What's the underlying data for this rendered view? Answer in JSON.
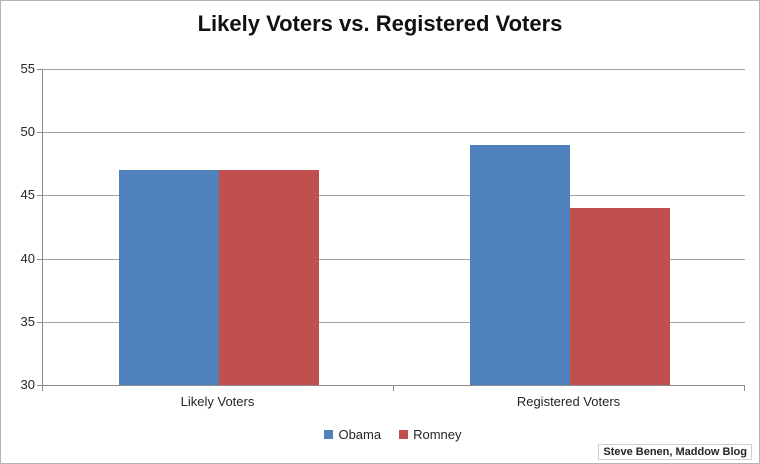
{
  "chart_data": {
    "type": "bar",
    "title": "Likely Voters vs. Registered Voters",
    "categories": [
      "Likely Voters",
      "Registered Voters"
    ],
    "series": [
      {
        "name": "Obama",
        "color": "#4F81BD",
        "values": [
          47,
          49
        ]
      },
      {
        "name": "Romney",
        "color": "#C0504D",
        "values": [
          47,
          44
        ]
      }
    ],
    "ylim": [
      30,
      55
    ],
    "yticks": [
      30,
      35,
      40,
      45,
      50,
      55
    ],
    "grid": "horizontal",
    "legend_position": "bottom",
    "axis_color": "#8c8c8c",
    "gridline_color": "#a3a3a3"
  },
  "attribution": "Steve Benen, Maddow Blog"
}
